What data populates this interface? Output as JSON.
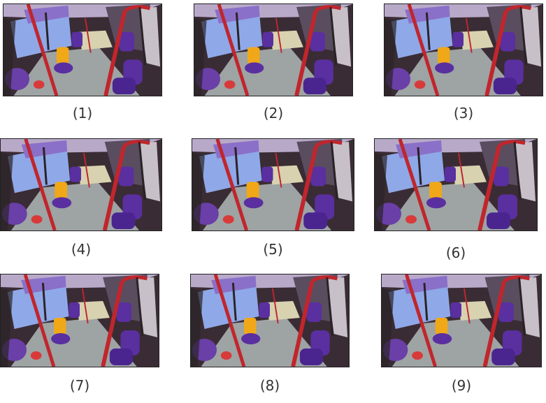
{
  "frames": [
    {
      "label": "(1)"
    },
    {
      "label": "(2)"
    },
    {
      "label": "(3)"
    },
    {
      "label": "(4)"
    },
    {
      "label": "(5)"
    },
    {
      "label": "(6)"
    },
    {
      "label": "(7)"
    },
    {
      "label": "(8)"
    },
    {
      "label": "(9)"
    }
  ],
  "colors": {
    "seat": "#5a2fa0",
    "pole": "#c0262c",
    "floor": "#9ea3a4",
    "window": "#8fa8e8",
    "ceiling": "#8a70c8",
    "accent_seat": "#f0a818",
    "bag": "#d83a3a"
  }
}
